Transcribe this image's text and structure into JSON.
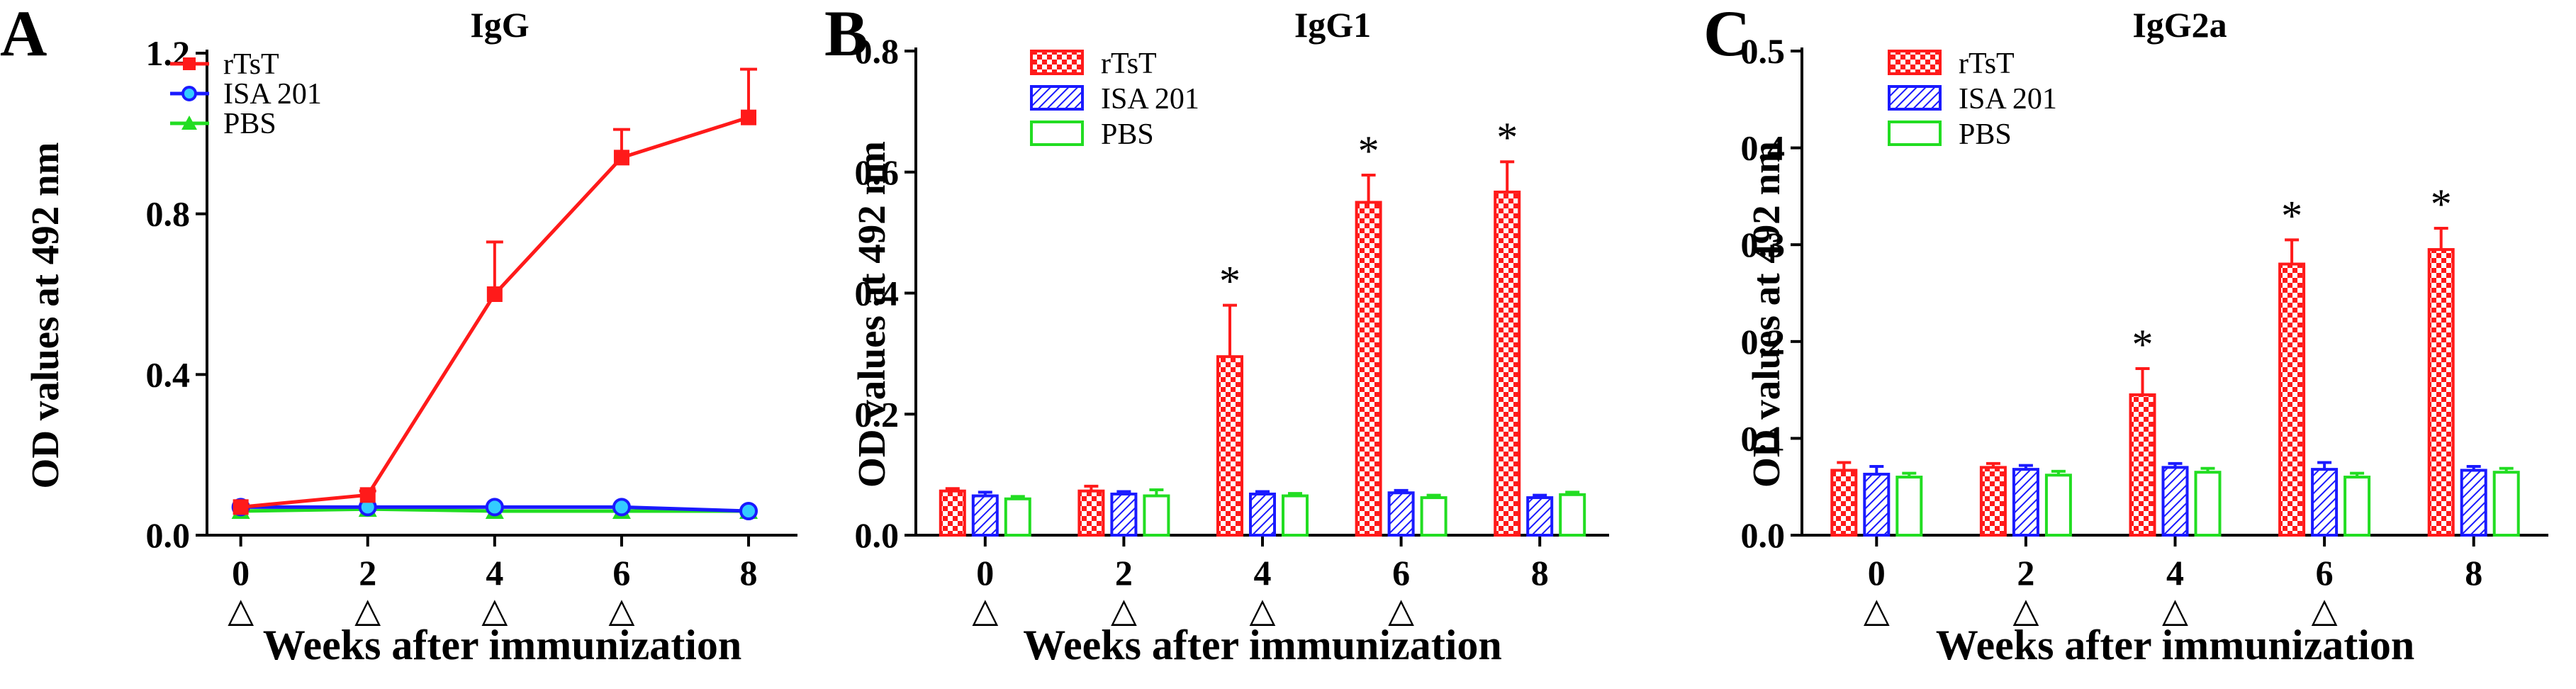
{
  "chart_data": [
    {
      "panel_letter": "A",
      "type": "line",
      "title": "IgG",
      "xlabel": "Weeks after immunization",
      "ylabel": "OD values at 492 nm",
      "x": [
        0,
        2,
        4,
        6,
        8
      ],
      "xticks": [
        "0",
        "2",
        "4",
        "6",
        "8"
      ],
      "yticks": [
        "0.0",
        "0.4",
        "0.8",
        "1.2"
      ],
      "ylim": [
        0,
        1.2
      ],
      "immunization_marker": "△",
      "immunization_weeks": [
        0,
        2,
        4,
        6
      ],
      "legend_position": "top-left",
      "series": [
        {
          "name": "rTsT",
          "color": "#ff1a1a",
          "marker": "square",
          "values": [
            0.07,
            0.1,
            0.6,
            0.94,
            1.04
          ],
          "errors": [
            0.0,
            0.01,
            0.13,
            0.07,
            0.12
          ]
        },
        {
          "name": "ISA 201",
          "color": "#1a1aff",
          "marker": "circle",
          "values": [
            0.07,
            0.07,
            0.07,
            0.07,
            0.06
          ],
          "errors": [
            0,
            0,
            0,
            0,
            0
          ]
        },
        {
          "name": "PBS",
          "color": "#22dd22",
          "marker": "triangle",
          "values": [
            0.06,
            0.065,
            0.06,
            0.06,
            0.06
          ],
          "errors": [
            0,
            0,
            0,
            0,
            0
          ]
        }
      ]
    },
    {
      "panel_letter": "B",
      "type": "bar",
      "title": "IgG1",
      "xlabel": "Weeks after immunization",
      "ylabel": "OD values at 492 nm",
      "categories": [
        "0",
        "2",
        "4",
        "6",
        "8"
      ],
      "yticks": [
        "0.0",
        "0.2",
        "0.4",
        "0.6",
        "0.8"
      ],
      "ylim": [
        0,
        0.8
      ],
      "immunization_marker": "△",
      "immunization_weeks": [
        0,
        2,
        4,
        6
      ],
      "significance_marker": "*",
      "significant_categories": [
        2,
        3,
        4
      ],
      "legend_position": "top-left",
      "series": [
        {
          "name": "rTsT",
          "color": "#ff1a1a",
          "pattern": "checker",
          "values": [
            0.073,
            0.073,
            0.295,
            0.55,
            0.567
          ],
          "errors": [
            0.004,
            0.008,
            0.085,
            0.045,
            0.05
          ]
        },
        {
          "name": "ISA 201",
          "color": "#1a1aff",
          "pattern": "hatch",
          "values": [
            0.065,
            0.068,
            0.068,
            0.07,
            0.062
          ],
          "errors": [
            0.006,
            0.004,
            0.004,
            0.004,
            0.004
          ]
        },
        {
          "name": "PBS",
          "color": "#22dd22",
          "pattern": "none",
          "values": [
            0.06,
            0.065,
            0.065,
            0.062,
            0.067
          ],
          "errors": [
            0.004,
            0.01,
            0.004,
            0.004,
            0.004
          ]
        }
      ]
    },
    {
      "panel_letter": "C",
      "type": "bar",
      "title": "IgG2a",
      "xlabel": "Weeks after immunization",
      "ylabel": "OD values at 492 nm",
      "categories": [
        "0",
        "2",
        "4",
        "6",
        "8"
      ],
      "yticks": [
        "0.0",
        "0.1",
        "0.2",
        "0.3",
        "0.4",
        "0.5"
      ],
      "ylim": [
        0,
        0.5
      ],
      "immunization_marker": "△",
      "immunization_weeks": [
        0,
        2,
        4,
        6
      ],
      "significance_marker": "*",
      "significant_categories": [
        2,
        3,
        4
      ],
      "legend_position": "top-left",
      "series": [
        {
          "name": "rTsT",
          "color": "#ff1a1a",
          "pattern": "checker",
          "values": [
            0.067,
            0.07,
            0.145,
            0.28,
            0.295
          ],
          "errors": [
            0.008,
            0.004,
            0.027,
            0.025,
            0.022
          ]
        },
        {
          "name": "ISA 201",
          "color": "#1a1aff",
          "pattern": "hatch",
          "values": [
            0.063,
            0.068,
            0.07,
            0.068,
            0.067
          ],
          "errors": [
            0.008,
            0.004,
            0.004,
            0.007,
            0.004
          ]
        },
        {
          "name": "PBS",
          "color": "#22dd22",
          "pattern": "none",
          "values": [
            0.06,
            0.062,
            0.065,
            0.06,
            0.065
          ],
          "errors": [
            0.004,
            0.004,
            0.004,
            0.004,
            0.004
          ]
        }
      ]
    }
  ]
}
